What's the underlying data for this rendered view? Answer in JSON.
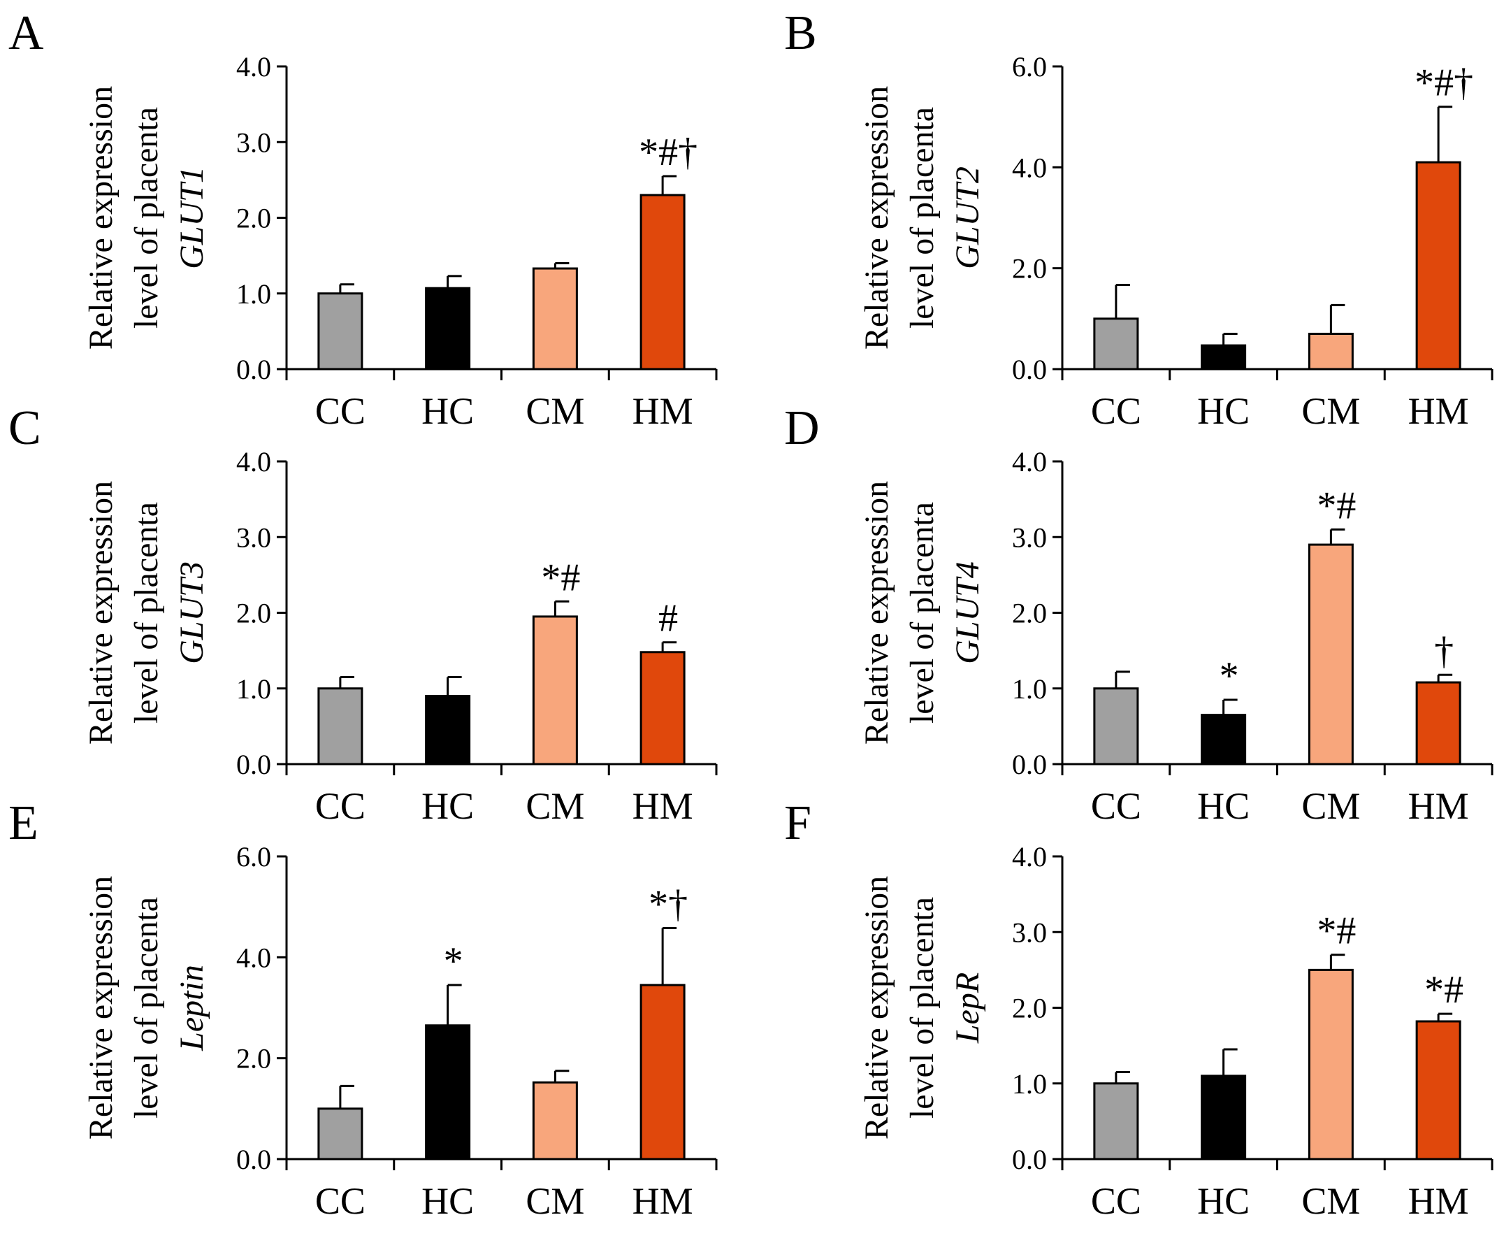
{
  "figure": {
    "colors": {
      "CC": "#a0a0a0",
      "HC": "#000000",
      "CM": "#f8a67c",
      "HM": "#e0480c"
    },
    "ylabel_line1": "Relative expression",
    "ylabel_line2": "level of placenta"
  },
  "chart_data": [
    {
      "panel": "A",
      "type": "bar",
      "gene": "GLUT1",
      "categories": [
        "CC",
        "HC",
        "CM",
        "HM"
      ],
      "values": [
        1.0,
        1.07,
        1.33,
        2.3
      ],
      "errors": [
        0.12,
        0.16,
        0.07,
        0.25
      ],
      "annotations": [
        "",
        "",
        "",
        "*#†"
      ],
      "ylim": [
        0,
        4
      ],
      "yticks": [
        "0.0",
        "1.0",
        "2.0",
        "3.0",
        "4.0"
      ]
    },
    {
      "panel": "B",
      "type": "bar",
      "gene": "GLUT2",
      "categories": [
        "CC",
        "HC",
        "CM",
        "HM"
      ],
      "values": [
        1.0,
        0.47,
        0.7,
        4.1
      ],
      "errors": [
        0.67,
        0.23,
        0.57,
        1.1
      ],
      "annotations": [
        "",
        "",
        "",
        "*#†"
      ],
      "ylim": [
        0,
        6
      ],
      "yticks": [
        "0.0",
        "2.0",
        "4.0",
        "6.0"
      ]
    },
    {
      "panel": "C",
      "type": "bar",
      "gene": "GLUT3",
      "categories": [
        "CC",
        "HC",
        "CM",
        "HM"
      ],
      "values": [
        1.0,
        0.9,
        1.95,
        1.48
      ],
      "errors": [
        0.15,
        0.25,
        0.2,
        0.13
      ],
      "annotations": [
        "",
        "",
        "*#",
        "#"
      ],
      "ylim": [
        0,
        4
      ],
      "yticks": [
        "0.0",
        "1.0",
        "2.0",
        "3.0",
        "4.0"
      ]
    },
    {
      "panel": "D",
      "type": "bar",
      "gene": "GLUT4",
      "categories": [
        "CC",
        "HC",
        "CM",
        "HM"
      ],
      "values": [
        1.0,
        0.65,
        2.9,
        1.08
      ],
      "errors": [
        0.22,
        0.2,
        0.2,
        0.1
      ],
      "annotations": [
        "",
        "*",
        "*#",
        "†"
      ],
      "ylim": [
        0,
        4
      ],
      "yticks": [
        "0.0",
        "1.0",
        "2.0",
        "3.0",
        "4.0"
      ]
    },
    {
      "panel": "E",
      "type": "bar",
      "gene": "Leptin",
      "categories": [
        "CC",
        "HC",
        "CM",
        "HM"
      ],
      "values": [
        1.0,
        2.65,
        1.52,
        3.45
      ],
      "errors": [
        0.45,
        0.8,
        0.23,
        1.13
      ],
      "annotations": [
        "",
        "*",
        "",
        "*†"
      ],
      "ylim": [
        0,
        6
      ],
      "yticks": [
        "0.0",
        "2.0",
        "4.0",
        "6.0"
      ]
    },
    {
      "panel": "F",
      "type": "bar",
      "gene": "LepR",
      "categories": [
        "CC",
        "HC",
        "CM",
        "HM"
      ],
      "values": [
        1.0,
        1.1,
        2.5,
        1.82
      ],
      "errors": [
        0.15,
        0.35,
        0.2,
        0.1
      ],
      "annotations": [
        "",
        "",
        "*#",
        "*#"
      ],
      "ylim": [
        0,
        4
      ],
      "yticks": [
        "0.0",
        "1.0",
        "2.0",
        "3.0",
        "4.0"
      ]
    }
  ]
}
